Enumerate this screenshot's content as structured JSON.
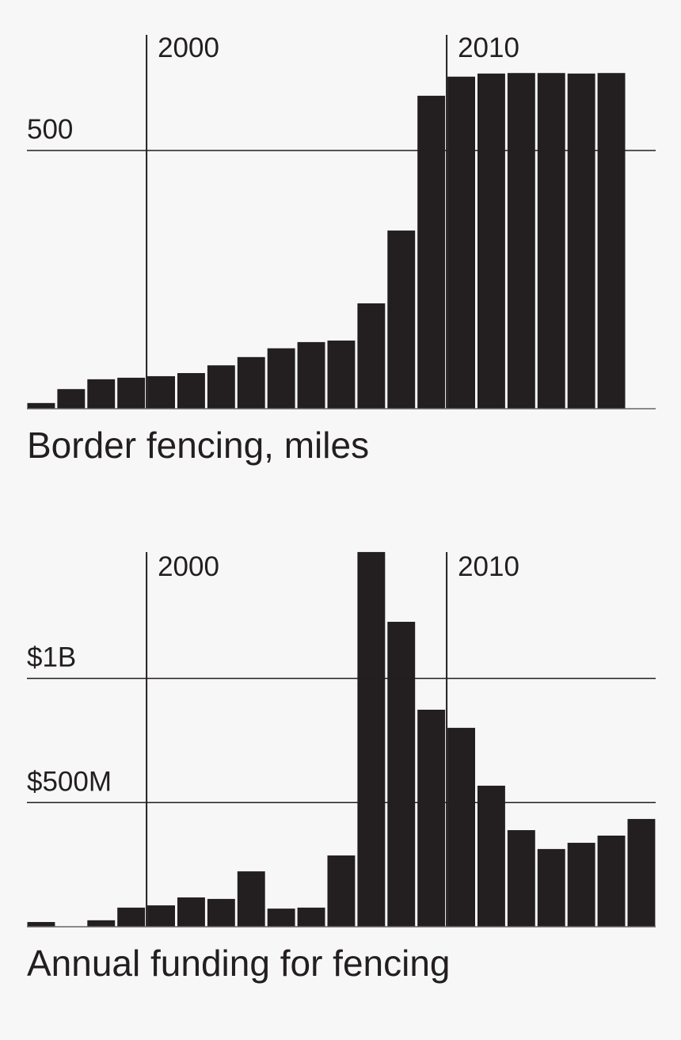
{
  "colors": {
    "background": "#f7f7f7",
    "bar": "#231f20",
    "line": "#231f20"
  },
  "chart_data": [
    {
      "type": "bar",
      "title": "Border fencing, miles",
      "x": [
        1996,
        1997,
        1998,
        1999,
        2000,
        2001,
        2002,
        2003,
        2004,
        2005,
        2006,
        2007,
        2008,
        2009,
        2010,
        2011,
        2012,
        2013,
        2014,
        2015
      ],
      "values": [
        11,
        38,
        57,
        60,
        63,
        69,
        84,
        100,
        117,
        129,
        132,
        204,
        345,
        606,
        643,
        649,
        650,
        650,
        649,
        650
      ],
      "y_ticks": [
        {
          "value": 500,
          "label": "500"
        }
      ],
      "x_ticks": [
        {
          "value": 2000,
          "label": "2000"
        },
        {
          "value": 2010,
          "label": "2010"
        }
      ],
      "grid": true
    },
    {
      "type": "bar",
      "title": "Annual funding for fencing",
      "x": [
        1996,
        1997,
        1998,
        1999,
        2000,
        2001,
        2002,
        2003,
        2004,
        2005,
        2006,
        2007,
        2008,
        2009,
        2010,
        2011,
        2012,
        2013,
        2014,
        2015,
        2016
      ],
      "values": [
        19,
        0,
        26,
        77,
        86,
        118,
        112,
        223,
        73,
        77,
        287,
        1509,
        1228,
        874,
        801,
        568,
        389,
        313,
        338,
        367,
        434
      ],
      "unit": "million USD",
      "y_ticks": [
        {
          "value": 500,
          "label": "$500M"
        },
        {
          "value": 1000,
          "label": "$1B"
        }
      ],
      "x_ticks": [
        {
          "value": 2000,
          "label": "2000"
        },
        {
          "value": 2010,
          "label": "2010"
        }
      ],
      "grid": true
    }
  ]
}
